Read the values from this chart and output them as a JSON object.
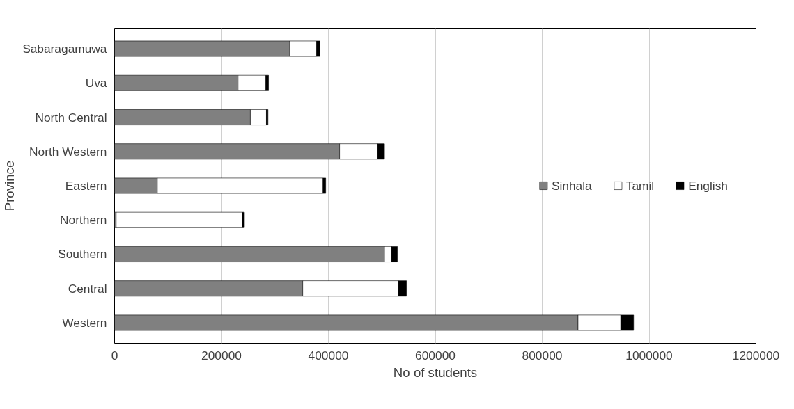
{
  "chart_data": {
    "type": "bar",
    "orientation": "horizontal",
    "stacked": true,
    "xlabel": "No of students",
    "ylabel": "Province",
    "categories": [
      "Sabaragamuwa",
      "Uva",
      "North Central",
      "North Western",
      "Eastern",
      "Northern",
      "Southern",
      "Central",
      "Western"
    ],
    "series": [
      {
        "name": "Sinhala",
        "color": "#808080",
        "values": [
          328000,
          231000,
          254000,
          421000,
          80000,
          3000,
          505000,
          352000,
          867000
        ]
      },
      {
        "name": "Tamil",
        "color": "#ffffff",
        "values": [
          50000,
          52000,
          30000,
          71000,
          310000,
          236000,
          13000,
          179000,
          80000
        ]
      },
      {
        "name": "English",
        "color": "#000000",
        "values": [
          6000,
          5000,
          3000,
          13000,
          5000,
          4000,
          11000,
          15000,
          24000
        ]
      }
    ],
    "xlim": [
      0,
      1200000
    ],
    "xticks": [
      0,
      200000,
      400000,
      600000,
      800000,
      1000000,
      1200000
    ],
    "grid": "x",
    "legend": "right"
  }
}
